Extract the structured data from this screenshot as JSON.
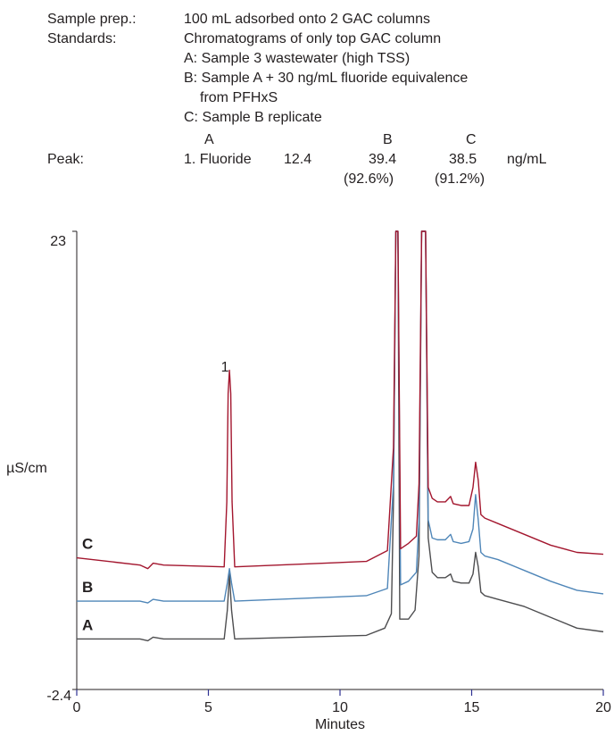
{
  "header": {
    "sample_prep_label": "Sample prep.:",
    "sample_prep_value": "100 mL adsorbed onto 2 GAC columns",
    "standards_label": "Standards:",
    "standards_lines": [
      "Chromatograms of only top GAC column",
      "A: Sample 3 wastewater (high TSS)",
      "B: Sample A + 30 ng/mL fluoride equivalence",
      "from PFHxS",
      "C: Sample B replicate"
    ],
    "peak_table": {
      "label": "Peak:",
      "columns": [
        "A",
        "B",
        "C"
      ],
      "peak_name": "1. Fluoride",
      "values": [
        "12.4",
        "39.4",
        "38.5"
      ],
      "recoveries": [
        "(92.6%)",
        "(91.2%)"
      ],
      "unit": "ng/mL"
    }
  },
  "chart_data": {
    "type": "line",
    "xlabel": "Minutes",
    "ylabel": "µS/cm",
    "xlim": [
      0,
      20
    ],
    "ylim": [
      -2.4,
      23
    ],
    "x_ticks": [
      "0",
      "5",
      "10",
      "15",
      "20"
    ],
    "y_ticks": [
      "23",
      "-2.4"
    ],
    "peak_label": "1",
    "peak_label_x": 5.8,
    "colors": {
      "A": "#4d4d4f",
      "B": "#4f86b8",
      "C": "#a3162e",
      "axis": "#231f20"
    },
    "series": [
      {
        "name": "A",
        "points": [
          [
            0,
            0.4
          ],
          [
            2.4,
            0.4
          ],
          [
            2.7,
            0.3
          ],
          [
            2.9,
            0.5
          ],
          [
            3.3,
            0.4
          ],
          [
            5.6,
            0.4
          ],
          [
            5.72,
            2
          ],
          [
            5.8,
            4
          ],
          [
            5.88,
            2
          ],
          [
            6,
            0.4
          ],
          [
            11,
            0.6
          ],
          [
            11.7,
            1
          ],
          [
            11.95,
            1.8
          ],
          [
            12.03,
            8
          ],
          [
            12.12,
            23
          ],
          [
            12.2,
            23
          ],
          [
            12.27,
            1.5
          ],
          [
            12.6,
            1.5
          ],
          [
            12.85,
            2
          ],
          [
            13.0,
            5
          ],
          [
            13.1,
            23
          ],
          [
            13.25,
            23
          ],
          [
            13.35,
            6
          ],
          [
            13.5,
            4.1
          ],
          [
            13.7,
            3.8
          ],
          [
            14.0,
            3.8
          ],
          [
            14.2,
            4
          ],
          [
            14.3,
            3.6
          ],
          [
            14.6,
            3.5
          ],
          [
            14.9,
            3.5
          ],
          [
            15.05,
            4
          ],
          [
            15.15,
            5.2
          ],
          [
            15.25,
            4.4
          ],
          [
            15.35,
            3
          ],
          [
            15.5,
            2.8
          ],
          [
            16,
            2.6
          ],
          [
            17,
            2.2
          ],
          [
            18,
            1.6
          ],
          [
            19,
            1.0
          ],
          [
            20,
            0.8
          ]
        ]
      },
      {
        "name": "B",
        "points": [
          [
            0,
            2.5
          ],
          [
            2.4,
            2.5
          ],
          [
            2.7,
            2.4
          ],
          [
            2.9,
            2.6
          ],
          [
            3.3,
            2.5
          ],
          [
            5.6,
            2.5
          ],
          [
            5.72,
            3.5
          ],
          [
            5.8,
            4.3
          ],
          [
            5.88,
            3.5
          ],
          [
            6,
            2.5
          ],
          [
            11,
            2.8
          ],
          [
            11.8,
            3.2
          ],
          [
            12.03,
            9
          ],
          [
            12.12,
            23
          ],
          [
            12.2,
            23
          ],
          [
            12.3,
            3.4
          ],
          [
            12.6,
            3.6
          ],
          [
            12.9,
            4.1
          ],
          [
            13.0,
            7
          ],
          [
            13.1,
            23
          ],
          [
            13.25,
            23
          ],
          [
            13.35,
            7
          ],
          [
            13.5,
            6
          ],
          [
            13.7,
            5.9
          ],
          [
            14.0,
            5.9
          ],
          [
            14.2,
            6.2
          ],
          [
            14.3,
            5.8
          ],
          [
            14.6,
            5.7
          ],
          [
            14.9,
            5.8
          ],
          [
            15.05,
            6.5
          ],
          [
            15.15,
            8.4
          ],
          [
            15.25,
            7
          ],
          [
            15.35,
            5.2
          ],
          [
            15.5,
            5
          ],
          [
            16,
            4.8
          ],
          [
            17,
            4.2
          ],
          [
            18,
            3.6
          ],
          [
            19,
            3.1
          ],
          [
            20,
            2.9
          ]
        ]
      },
      {
        "name": "C",
        "points": [
          [
            0,
            4.9
          ],
          [
            2.4,
            4.5
          ],
          [
            2.7,
            4.3
          ],
          [
            2.9,
            4.6
          ],
          [
            3.3,
            4.5
          ],
          [
            5.6,
            4.4
          ],
          [
            5.7,
            8
          ],
          [
            5.75,
            14
          ],
          [
            5.8,
            15.3
          ],
          [
            5.85,
            14
          ],
          [
            5.9,
            8
          ],
          [
            6,
            4.4
          ],
          [
            11,
            4.7
          ],
          [
            11.8,
            5.3
          ],
          [
            12.03,
            11
          ],
          [
            12.12,
            23
          ],
          [
            12.2,
            23
          ],
          [
            12.3,
            5.4
          ],
          [
            12.6,
            5.7
          ],
          [
            12.9,
            6.1
          ],
          [
            13.0,
            9
          ],
          [
            13.1,
            23
          ],
          [
            13.25,
            23
          ],
          [
            13.35,
            8.8
          ],
          [
            13.5,
            8.2
          ],
          [
            13.7,
            8
          ],
          [
            14.0,
            8
          ],
          [
            14.2,
            8.3
          ],
          [
            14.3,
            7.9
          ],
          [
            14.6,
            7.8
          ],
          [
            14.9,
            7.8
          ],
          [
            15.05,
            8.8
          ],
          [
            15.15,
            10.2
          ],
          [
            15.25,
            9.2
          ],
          [
            15.35,
            7.3
          ],
          [
            15.5,
            7.1
          ],
          [
            16,
            6.8
          ],
          [
            17,
            6.2
          ],
          [
            18,
            5.6
          ],
          [
            19,
            5.2
          ],
          [
            20,
            5.1
          ]
        ]
      }
    ]
  }
}
